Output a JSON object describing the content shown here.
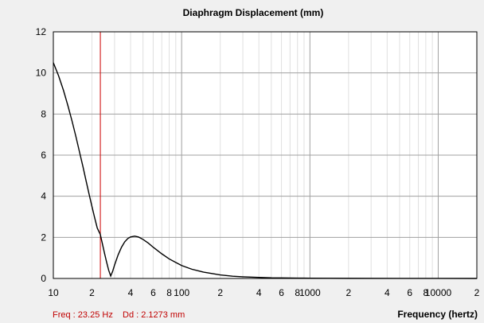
{
  "chart_data": {
    "type": "line",
    "title": "Diaphragm Displacement (mm)",
    "xlabel": "Frequency (hertz)",
    "ylabel": "",
    "x_scale": "log",
    "xlim": [
      10,
      20000
    ],
    "ylim": [
      0,
      12
    ],
    "grid": true,
    "y_ticks": [
      0,
      2,
      4,
      6,
      8,
      10,
      12
    ],
    "x_ticks": [
      {
        "value": 10,
        "label": "10"
      },
      {
        "value": 20,
        "label": "2"
      },
      {
        "value": 40,
        "label": "4"
      },
      {
        "value": 60,
        "label": "6"
      },
      {
        "value": 80,
        "label": "8"
      },
      {
        "value": 100,
        "label": "100"
      },
      {
        "value": 200,
        "label": "2"
      },
      {
        "value": 400,
        "label": "4"
      },
      {
        "value": 600,
        "label": "6"
      },
      {
        "value": 800,
        "label": "8"
      },
      {
        "value": 1000,
        "label": "1000"
      },
      {
        "value": 2000,
        "label": "2"
      },
      {
        "value": 4000,
        "label": "4"
      },
      {
        "value": 6000,
        "label": "6"
      },
      {
        "value": 8000,
        "label": "8"
      },
      {
        "value": 10000,
        "label": "10000"
      },
      {
        "value": 20000,
        "label": "2"
      }
    ],
    "cursor": {
      "x": 23.25,
      "color": "#cc0000"
    },
    "series": [
      {
        "color": "#000000",
        "x": [
          10,
          11,
          12,
          13,
          14,
          15,
          16,
          17,
          18,
          19,
          20,
          21,
          22,
          23,
          23.25,
          24,
          25,
          26,
          27,
          28,
          29,
          30,
          32,
          34,
          36,
          38,
          40,
          43,
          46,
          50,
          55,
          60,
          70,
          80,
          90,
          100,
          120,
          150,
          200,
          250,
          300,
          400,
          500,
          600,
          800,
          1000,
          2000,
          5000,
          10000,
          20000
        ],
        "y": [
          10.5,
          9.85,
          9.15,
          8.4,
          7.65,
          6.9,
          6.15,
          5.45,
          4.75,
          4.1,
          3.5,
          2.95,
          2.45,
          2.2,
          2.13,
          1.75,
          1.25,
          0.8,
          0.4,
          0.12,
          0.35,
          0.65,
          1.15,
          1.52,
          1.78,
          1.94,
          2.02,
          2.06,
          2.02,
          1.9,
          1.72,
          1.52,
          1.2,
          0.95,
          0.78,
          0.63,
          0.45,
          0.3,
          0.17,
          0.11,
          0.08,
          0.05,
          0.03,
          0.025,
          0.018,
          0.012,
          0.005,
          0.002,
          0.001,
          0
        ]
      }
    ]
  },
  "status": {
    "freq_label": "Freq : 23.25 Hz",
    "dd_label": "Dd : 2.1273 mm"
  }
}
